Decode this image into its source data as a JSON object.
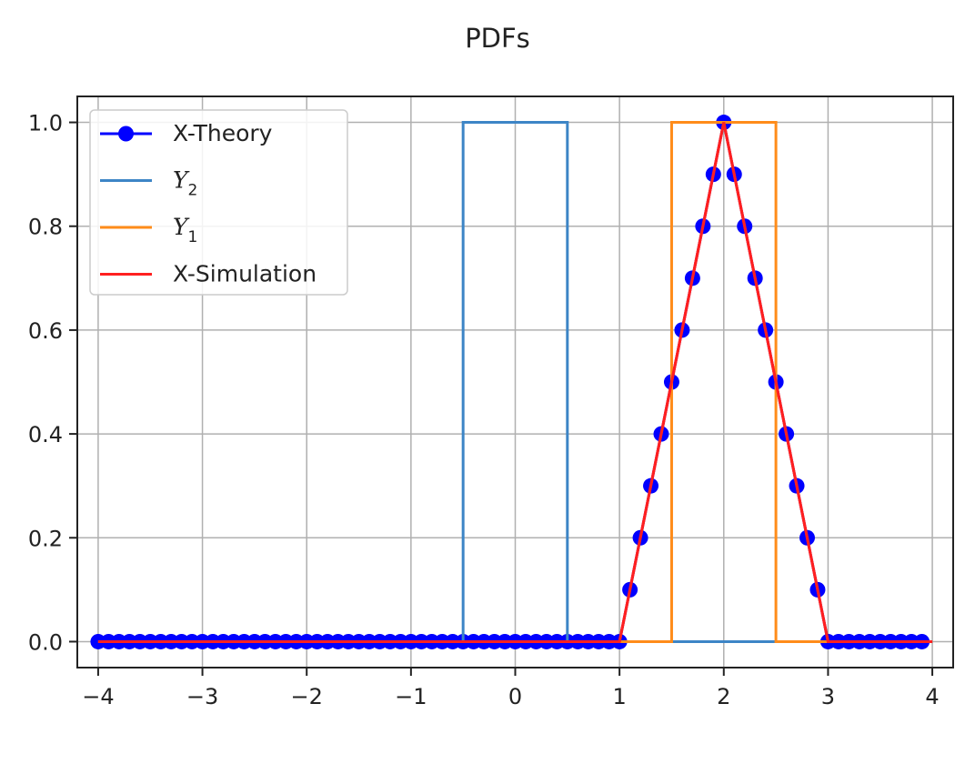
{
  "chart_data": {
    "type": "line",
    "title": "PDFs",
    "xlabel": "",
    "ylabel": "",
    "xlim": [
      -4.2,
      4.2
    ],
    "ylim": [
      -0.05,
      1.05
    ],
    "x_ticks": [
      -4,
      -3,
      -2,
      -1,
      0,
      1,
      2,
      3,
      4
    ],
    "x_tick_labels": [
      "−4",
      "−3",
      "−2",
      "−1",
      "0",
      "1",
      "2",
      "3",
      "4"
    ],
    "y_ticks": [
      0.0,
      0.2,
      0.4,
      0.6,
      0.8,
      1.0
    ],
    "y_tick_labels": [
      "0.0",
      "0.2",
      "0.4",
      "0.6",
      "0.8",
      "1.0"
    ],
    "grid": true,
    "legend_position": "top-left",
    "series": [
      {
        "name": "X-Theory",
        "kind": "line-markers",
        "color": "#0000ff",
        "x": [
          -4.0,
          -3.9,
          -3.8,
          -3.7,
          -3.6,
          -3.5,
          -3.4,
          -3.3,
          -3.2,
          -3.1,
          -3.0,
          -2.9,
          -2.8,
          -2.7,
          -2.6,
          -2.5,
          -2.4,
          -2.3,
          -2.2,
          -2.1,
          -2.0,
          -1.9,
          -1.8,
          -1.7,
          -1.6,
          -1.5,
          -1.4,
          -1.3,
          -1.2,
          -1.1,
          -1.0,
          -0.9,
          -0.8,
          -0.7,
          -0.6,
          -0.5,
          -0.4,
          -0.3,
          -0.2,
          -0.1,
          0.0,
          0.1,
          0.2,
          0.3,
          0.4,
          0.5,
          0.6,
          0.7,
          0.8,
          0.9,
          1.0,
          1.1,
          1.2,
          1.3,
          1.4,
          1.5,
          1.6,
          1.7,
          1.8,
          1.9,
          2.0,
          2.1,
          2.2,
          2.3,
          2.4,
          2.5,
          2.6,
          2.7,
          2.8,
          2.9,
          3.0,
          3.1,
          3.2,
          3.3,
          3.4,
          3.5,
          3.6,
          3.7,
          3.8,
          3.9
        ],
        "y": [
          0,
          0,
          0,
          0,
          0,
          0,
          0,
          0,
          0,
          0,
          0,
          0,
          0,
          0,
          0,
          0,
          0,
          0,
          0,
          0,
          0,
          0,
          0,
          0,
          0,
          0,
          0,
          0,
          0,
          0,
          0,
          0,
          0,
          0,
          0,
          0,
          0,
          0,
          0,
          0,
          0,
          0,
          0,
          0,
          0,
          0,
          0,
          0,
          0,
          0,
          0,
          0.1,
          0.2,
          0.3,
          0.4,
          0.5,
          0.6,
          0.7,
          0.8,
          0.9,
          1.0,
          0.9,
          0.8,
          0.7,
          0.6,
          0.5,
          0.4,
          0.3,
          0.2,
          0.1,
          0,
          0,
          0,
          0,
          0,
          0,
          0,
          0,
          0,
          0
        ]
      },
      {
        "name": "Y",
        "name_subscript": "2",
        "kind": "line",
        "color": "#3d85c6",
        "x": [
          -4.0,
          -0.5,
          -0.5,
          0.5,
          0.5,
          4.0
        ],
        "y": [
          0,
          0,
          1,
          1,
          0,
          0
        ]
      },
      {
        "name": "Y",
        "name_subscript": "1",
        "kind": "line",
        "color": "#ff8c1a",
        "x": [
          -4.0,
          1.5,
          1.5,
          2.5,
          2.5,
          4.0
        ],
        "y": [
          0,
          0,
          1,
          1,
          0,
          0
        ]
      },
      {
        "name": "X-Simulation",
        "kind": "line",
        "color": "#ff2020",
        "x": [
          -4.0,
          1.0,
          2.0,
          3.0,
          4.0
        ],
        "y": [
          0,
          0,
          1,
          0,
          0
        ]
      }
    ]
  }
}
